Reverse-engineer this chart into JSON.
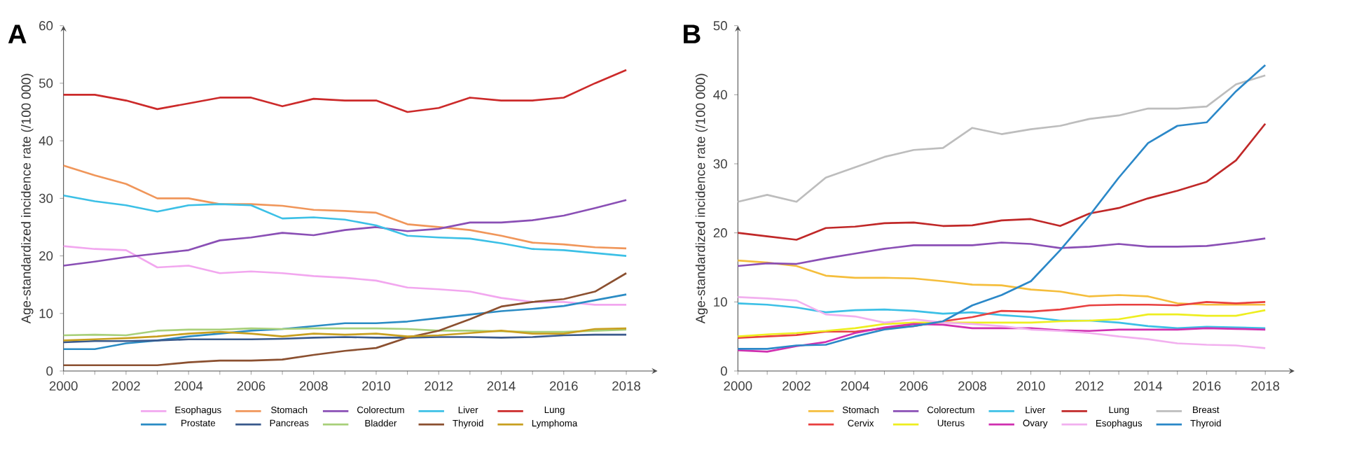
{
  "chart_data": [
    {
      "type": "line",
      "title": "A",
      "ylabel": "Age-standardized incidence rate (/100 000)",
      "x": [
        2000,
        2001,
        2002,
        2003,
        2004,
        2005,
        2006,
        2007,
        2008,
        2009,
        2010,
        2011,
        2012,
        2013,
        2014,
        2015,
        2016,
        2017,
        2018
      ],
      "xlim": [
        2000,
        2019
      ],
      "xticks": [
        2000,
        {
          "value": 2001,
          "label": null
        },
        2002,
        {
          "value": 2003,
          "label": null
        },
        2004,
        {
          "value": 2005,
          "label": null
        },
        2006,
        {
          "value": 2007,
          "label": null
        },
        2008,
        {
          "value": 2009,
          "label": null
        },
        2010,
        {
          "value": 2011,
          "label": null
        },
        2012,
        {
          "value": 2013,
          "label": null
        },
        2014,
        {
          "value": 2015,
          "label": null
        },
        2016,
        {
          "value": 2017,
          "label": null
        },
        2018
      ],
      "ylim": [
        0,
        60
      ],
      "yticks": [
        0,
        10,
        20,
        30,
        40,
        50,
        60
      ],
      "legend": "bottom",
      "grid": false,
      "marker": "none",
      "line_style": "solid",
      "series": [
        {
          "name": "Esophagus",
          "color": "#f2a7ef",
          "values": [
            21.7,
            21.2,
            21,
            18,
            18.3,
            17,
            17.3,
            17,
            16.5,
            16.2,
            15.7,
            14.5,
            14.2,
            13.8,
            12.7,
            12,
            12,
            11.5,
            11.5
          ]
        },
        {
          "name": "Stomach",
          "color": "#f0965a",
          "values": [
            35.7,
            34,
            32.5,
            30,
            30,
            29,
            29,
            28.7,
            28,
            27.8,
            27.5,
            25.5,
            25,
            24.5,
            23.5,
            22.3,
            22,
            21.5,
            21.3
          ]
        },
        {
          "name": "Colorectum",
          "color": "#8a4fb5",
          "values": [
            18.3,
            19,
            19.8,
            20.4,
            21,
            22.7,
            23.2,
            24,
            23.6,
            24.5,
            25,
            24.3,
            24.7,
            25.8,
            25.8,
            26.2,
            27,
            28.3,
            29.7
          ]
        },
        {
          "name": "Liver",
          "color": "#3cc0e6",
          "values": [
            30.5,
            29.5,
            28.8,
            27.7,
            28.8,
            29,
            28.8,
            26.5,
            26.7,
            26.3,
            25.3,
            23.5,
            23.2,
            23,
            22.2,
            21.2,
            21,
            20.5,
            20
          ]
        },
        {
          "name": "Lung",
          "color": "#cc2a2a",
          "values": [
            48,
            48,
            47,
            45.5,
            46.5,
            47.5,
            47.5,
            46,
            47.3,
            47,
            47,
            45,
            45.7,
            47.5,
            47,
            47,
            47.5,
            50,
            52.3
          ]
        },
        {
          "name": "Prostate",
          "color": "#2b8cc4",
          "values": [
            3.8,
            3.8,
            4.8,
            5.3,
            6,
            6.5,
            7,
            7.3,
            7.8,
            8.3,
            8.3,
            8.6,
            9.2,
            9.8,
            10.4,
            10.8,
            11.3,
            12.3,
            13.3
          ]
        },
        {
          "name": "Pancreas",
          "color": "#3a5a8c",
          "values": [
            5,
            5.2,
            5.2,
            5.3,
            5.5,
            5.5,
            5.5,
            5.6,
            5.8,
            5.9,
            5.8,
            5.8,
            5.9,
            5.9,
            5.8,
            5.9,
            6.2,
            6.3,
            6.3
          ]
        },
        {
          "name": "Bladder",
          "color": "#a8d07a",
          "values": [
            6.2,
            6.3,
            6.2,
            7,
            7.2,
            7.2,
            7.4,
            7.3,
            7.4,
            7.4,
            7.4,
            7.3,
            7,
            7,
            6.9,
            6.8,
            6.8,
            7,
            7.2
          ]
        },
        {
          "name": "Thyroid",
          "color": "#8b5030",
          "values": [
            1,
            1,
            1,
            1,
            1.5,
            1.8,
            1.8,
            2,
            2.8,
            3.5,
            4,
            5.8,
            7,
            9,
            11.2,
            12,
            12.5,
            13.8,
            17
          ]
        },
        {
          "name": "Lymphoma",
          "color": "#c8a020",
          "values": [
            5.3,
            5.5,
            5.7,
            6,
            6.5,
            6.8,
            6.5,
            6,
            6.5,
            6.3,
            6.5,
            6,
            6.2,
            6.6,
            7,
            6.5,
            6.5,
            7.3,
            7.4
          ]
        }
      ]
    },
    {
      "type": "line",
      "title": "B",
      "ylabel": "Age-standardized incidence rate (/100 000)",
      "x": [
        2000,
        2001,
        2002,
        2003,
        2004,
        2005,
        2006,
        2007,
        2008,
        2009,
        2010,
        2011,
        2012,
        2013,
        2014,
        2015,
        2016,
        2017,
        2018
      ],
      "xlim": [
        2000,
        2019
      ],
      "xticks": [
        2000,
        {
          "value": 2001,
          "label": null
        },
        2002,
        {
          "value": 2003,
          "label": null
        },
        2004,
        {
          "value": 2005,
          "label": null
        },
        2006,
        {
          "value": 2007,
          "label": null
        },
        2008,
        {
          "value": 2009,
          "label": null
        },
        2010,
        {
          "value": 2011,
          "label": null
        },
        2012,
        {
          "value": 2013,
          "label": null
        },
        2014,
        {
          "value": 2015,
          "label": null
        },
        2016,
        {
          "value": 2017,
          "label": null
        },
        2018
      ],
      "ylim": [
        0,
        50
      ],
      "yticks": [
        0,
        10,
        20,
        30,
        40,
        50
      ],
      "legend": "bottom",
      "grid": false,
      "marker": "none",
      "line_style": "solid",
      "series": [
        {
          "name": "Stomach",
          "color": "#f5be3c",
          "values": [
            16,
            15.7,
            15.2,
            13.8,
            13.5,
            13.5,
            13.4,
            13,
            12.5,
            12.4,
            11.8,
            11.5,
            10.8,
            11,
            10.8,
            9.8,
            9.6,
            9.6,
            9.6
          ]
        },
        {
          "name": "Colorectum",
          "color": "#8a4fb5",
          "values": [
            15.2,
            15.6,
            15.5,
            16.3,
            17,
            17.7,
            18.2,
            18.2,
            18.2,
            18.6,
            18.4,
            17.8,
            18,
            18.4,
            18,
            18,
            18.1,
            18.6,
            19.2
          ]
        },
        {
          "name": "Liver",
          "color": "#3cc0e6",
          "values": [
            9.8,
            9.6,
            9.2,
            8.5,
            8.8,
            8.9,
            8.7,
            8.3,
            8.5,
            8.1,
            7.8,
            7.3,
            7.3,
            7,
            6.5,
            6.2,
            6.4,
            6.3,
            6.2
          ]
        },
        {
          "name": "Lung",
          "color": "#c02828",
          "values": [
            20,
            19.5,
            19,
            20.7,
            20.9,
            21.4,
            21.5,
            21,
            21.1,
            21.8,
            22,
            21,
            22.8,
            23.6,
            25,
            26.1,
            27.4,
            30.5,
            35.8
          ]
        },
        {
          "name": "Breast",
          "color": "#bdbdbd",
          "values": [
            24.5,
            25.5,
            24.5,
            28,
            29.5,
            31,
            32,
            32.3,
            35.2,
            34.3,
            35,
            35.5,
            36.5,
            37,
            38,
            38,
            38.3,
            41.5,
            42.8
          ]
        },
        {
          "name": "Cervix",
          "color": "#e84040",
          "values": [
            4.8,
            5,
            5.2,
            5.7,
            5.7,
            6.2,
            6.5,
            7.2,
            7.8,
            8.7,
            8.6,
            8.9,
            9.5,
            9.6,
            9.6,
            9.5,
            10,
            9.8,
            10
          ]
        },
        {
          "name": "Uterus",
          "color": "#eeee20",
          "values": [
            5,
            5.3,
            5.5,
            5.8,
            6.2,
            6.8,
            7,
            7,
            7,
            7,
            7,
            7.2,
            7.3,
            7.5,
            8.2,
            8.2,
            8,
            8,
            8.8
          ]
        },
        {
          "name": "Ovary",
          "color": "#d030b0",
          "values": [
            3,
            2.8,
            3.6,
            4.2,
            5.5,
            6.3,
            6.8,
            6.7,
            6.2,
            6.2,
            6.2,
            5.9,
            5.8,
            6,
            6,
            6,
            6.2,
            6.1,
            6
          ]
        },
        {
          "name": "Esophagus",
          "color": "#f2b0ef",
          "values": [
            10.7,
            10.5,
            10.2,
            8.2,
            7.9,
            7,
            7.5,
            7,
            6.8,
            6.5,
            6,
            5.8,
            5.5,
            5,
            4.6,
            4,
            3.8,
            3.7,
            3.3
          ]
        },
        {
          "name": "Thyroid",
          "color": "#2b88c8",
          "values": [
            3.2,
            3.2,
            3.7,
            3.8,
            5,
            6,
            6.5,
            7.2,
            9.5,
            11,
            13,
            17.5,
            22.5,
            28,
            33,
            35.5,
            36,
            40.5,
            44.3
          ]
        }
      ]
    }
  ]
}
